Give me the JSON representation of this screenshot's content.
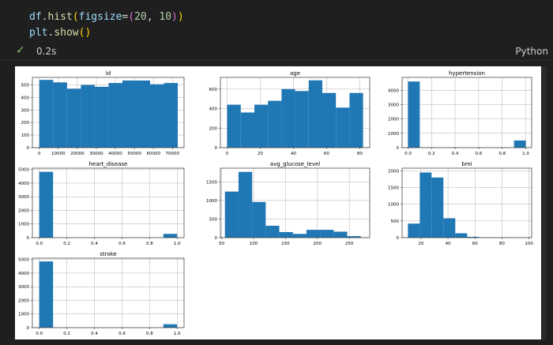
{
  "code": {
    "line1": [
      {
        "t": "df",
        "c": "#9cdcfe"
      },
      {
        "t": ".",
        "c": "#d4d4d4"
      },
      {
        "t": "hist",
        "c": "#dcdcaa"
      },
      {
        "t": "(",
        "c": "#ffd700"
      },
      {
        "t": "figsize",
        "c": "#9cdcfe"
      },
      {
        "t": "=",
        "c": "#d4d4d4"
      },
      {
        "t": "(",
        "c": "#da70d6"
      },
      {
        "t": "20",
        "c": "#b5cea8"
      },
      {
        "t": ", ",
        "c": "#d4d4d4"
      },
      {
        "t": "10",
        "c": "#b5cea8"
      },
      {
        "t": ")",
        "c": "#da70d6"
      },
      {
        "t": ")",
        "c": "#ffd700"
      }
    ],
    "line2": [
      {
        "t": "plt",
        "c": "#9cdcfe"
      },
      {
        "t": ".",
        "c": "#d4d4d4"
      },
      {
        "t": "show",
        "c": "#dcdcaa"
      },
      {
        "t": "()",
        "c": "#ffd700"
      }
    ]
  },
  "status": {
    "check": "✓",
    "time": "0.2s",
    "kernel": "Python"
  },
  "colors": {
    "bar": "#1f77b4",
    "grid": "#b0b0b0"
  },
  "chart_data": [
    {
      "type": "bar",
      "title": "id",
      "xlim": [
        -3600,
        76100
      ],
      "ylim": [
        0,
        560
      ],
      "xticks": [
        0,
        10000,
        20000,
        30000,
        40000,
        50000,
        60000,
        70000
      ],
      "xtick_labels": [
        "0",
        "10000",
        "20000",
        "30000",
        "40000",
        "50000",
        "60000",
        "70000"
      ],
      "yticks": [
        0,
        100,
        200,
        300,
        400,
        500
      ],
      "ytick_labels": [
        "0",
        "100",
        "200",
        "300",
        "400",
        "500"
      ],
      "bin_edges": [
        67,
        7339,
        14611,
        21883,
        29155,
        36427,
        43699,
        50971,
        58243,
        65515,
        72787
      ],
      "values": [
        540,
        520,
        470,
        500,
        485,
        515,
        535,
        535,
        505,
        515
      ]
    },
    {
      "type": "bar",
      "title": "age",
      "xlim": [
        -4,
        86
      ],
      "ylim": [
        0,
        720
      ],
      "xticks": [
        0,
        20,
        40,
        60,
        80
      ],
      "xtick_labels": [
        "0",
        "20",
        "40",
        "60",
        "80"
      ],
      "yticks": [
        0,
        200,
        400,
        600
      ],
      "ytick_labels": [
        "0",
        "200",
        "400",
        "600"
      ],
      "bin_edges": [
        0.08,
        8.27,
        16.46,
        24.66,
        32.85,
        41.04,
        49.23,
        57.42,
        65.62,
        73.81,
        82.0
      ],
      "values": [
        440,
        360,
        440,
        480,
        600,
        580,
        690,
        560,
        410,
        560
      ]
    },
    {
      "type": "bar",
      "title": "hypertension",
      "xlim": [
        -0.05,
        1.05
      ],
      "ylim": [
        0,
        4900
      ],
      "xticks": [
        0,
        0.2,
        0.4,
        0.6,
        0.8,
        1.0
      ],
      "xtick_labels": [
        "0.0",
        "0.2",
        "0.4",
        "0.6",
        "0.8",
        "1.0"
      ],
      "yticks": [
        0,
        1000,
        2000,
        3000,
        4000
      ],
      "ytick_labels": [
        "0",
        "1000",
        "2000",
        "3000",
        "4000"
      ],
      "bin_edges": [
        0,
        0.1,
        0.2,
        0.3,
        0.4,
        0.5,
        0.6,
        0.7,
        0.8,
        0.9,
        1.0
      ],
      "values": [
        4612,
        0,
        0,
        0,
        0,
        0,
        0,
        0,
        0,
        498
      ]
    },
    {
      "type": "bar",
      "title": "heart_disease",
      "xlim": [
        -0.05,
        1.05
      ],
      "ylim": [
        0,
        5100
      ],
      "xticks": [
        0,
        0.2,
        0.4,
        0.6,
        0.8,
        1.0
      ],
      "xtick_labels": [
        "0.0",
        "0.2",
        "0.4",
        "0.6",
        "0.8",
        "1.0"
      ],
      "yticks": [
        0,
        1000,
        2000,
        3000,
        4000,
        5000
      ],
      "ytick_labels": [
        "0",
        "1000",
        "2000",
        "3000",
        "4000",
        "5000"
      ],
      "bin_edges": [
        0,
        0.1,
        0.2,
        0.3,
        0.4,
        0.5,
        0.6,
        0.7,
        0.8,
        0.9,
        1.0
      ],
      "values": [
        4834,
        0,
        0,
        0,
        0,
        0,
        0,
        0,
        0,
        276
      ]
    },
    {
      "type": "bar",
      "title": "avg_glucose_level",
      "xlim": [
        48,
        282
      ],
      "ylim": [
        0,
        1870
      ],
      "xticks": [
        50,
        100,
        150,
        200,
        250
      ],
      "xtick_labels": [
        "50",
        "100",
        "150",
        "200",
        "250"
      ],
      "yticks": [
        0,
        500,
        1000,
        1500
      ],
      "ytick_labels": [
        "0",
        "500",
        "1000",
        "1500"
      ],
      "bin_edges": [
        55.1,
        76.4,
        97.7,
        119.0,
        140.3,
        161.6,
        182.9,
        204.2,
        225.5,
        246.8,
        268.1
      ],
      "values": [
        1240,
        1770,
        960,
        320,
        150,
        100,
        210,
        210,
        160,
        40
      ]
    },
    {
      "type": "bar",
      "title": "bmi",
      "xlim": [
        6,
        102
      ],
      "ylim": [
        0,
        2080
      ],
      "xticks": [
        20,
        40,
        60,
        80,
        100
      ],
      "xtick_labels": [
        "20",
        "40",
        "60",
        "80",
        "100"
      ],
      "yticks": [
        0,
        500,
        1000,
        1500,
        2000
      ],
      "ytick_labels": [
        "0",
        "500",
        "1000",
        "1500",
        "2000"
      ],
      "bin_edges": [
        10.3,
        19.1,
        27.8,
        36.6,
        45.4,
        54.2,
        62.9,
        71.7,
        80.5,
        89.2,
        98.0
      ],
      "values": [
        420,
        1950,
        1800,
        580,
        130,
        25,
        5,
        3,
        2,
        2
      ]
    },
    {
      "type": "bar",
      "title": "stroke",
      "xlim": [
        -0.05,
        1.05
      ],
      "ylim": [
        0,
        5100
      ],
      "xticks": [
        0,
        0.2,
        0.4,
        0.6,
        0.8,
        1.0
      ],
      "xtick_labels": [
        "0.0",
        "0.2",
        "0.4",
        "0.6",
        "0.8",
        "1.0"
      ],
      "yticks": [
        0,
        1000,
        2000,
        3000,
        4000,
        5000
      ],
      "ytick_labels": [
        "0",
        "1000",
        "2000",
        "3000",
        "4000",
        "5000"
      ],
      "bin_edges": [
        0,
        0.1,
        0.2,
        0.3,
        0.4,
        0.5,
        0.6,
        0.7,
        0.8,
        0.9,
        1.0
      ],
      "values": [
        4861,
        0,
        0,
        0,
        0,
        0,
        0,
        0,
        0,
        249
      ]
    }
  ]
}
